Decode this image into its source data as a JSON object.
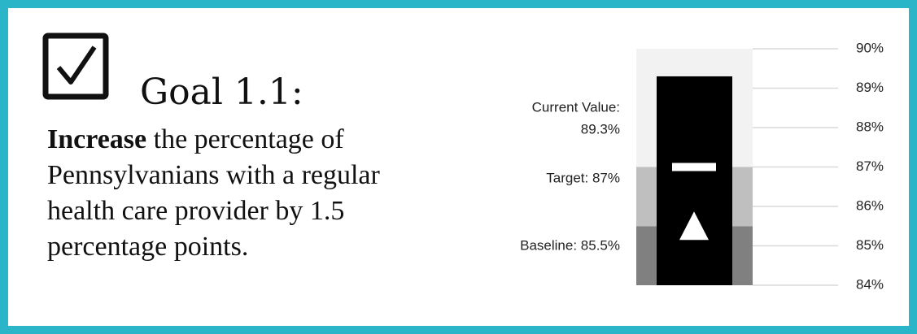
{
  "header": {
    "title": "Goal 1.1:",
    "description_bold": "Increase",
    "description": " the percentage of Pennsylvanians with a regular health care provider by 1.5 percentage points."
  },
  "chart_data": {
    "type": "bullet",
    "ranges": [
      {
        "from": 84,
        "to": 85.5,
        "color": "#808080"
      },
      {
        "from": 85.5,
        "to": 87,
        "color": "#bfbfbf"
      },
      {
        "from": 87,
        "to": 90,
        "color": "#f2f2f2"
      }
    ],
    "current": {
      "label": "Current Value:",
      "value": 89.3,
      "value_label": "89.3%",
      "color": "#000000"
    },
    "target": {
      "label": "Target: 87%",
      "value": 87,
      "color": "#ffffff"
    },
    "baseline": {
      "label": "Baseline: 85.5%",
      "value": 85.5,
      "color": "#ffffff"
    },
    "ylim": [
      84,
      90
    ],
    "yticks": [
      {
        "value": 84,
        "label": "84%"
      },
      {
        "value": 85,
        "label": "85%"
      },
      {
        "value": 86,
        "label": "86%"
      },
      {
        "value": 87,
        "label": "87%"
      },
      {
        "value": 88,
        "label": "88%"
      },
      {
        "value": 89,
        "label": "89%"
      },
      {
        "value": 90,
        "label": "90%"
      }
    ],
    "grid": true
  }
}
